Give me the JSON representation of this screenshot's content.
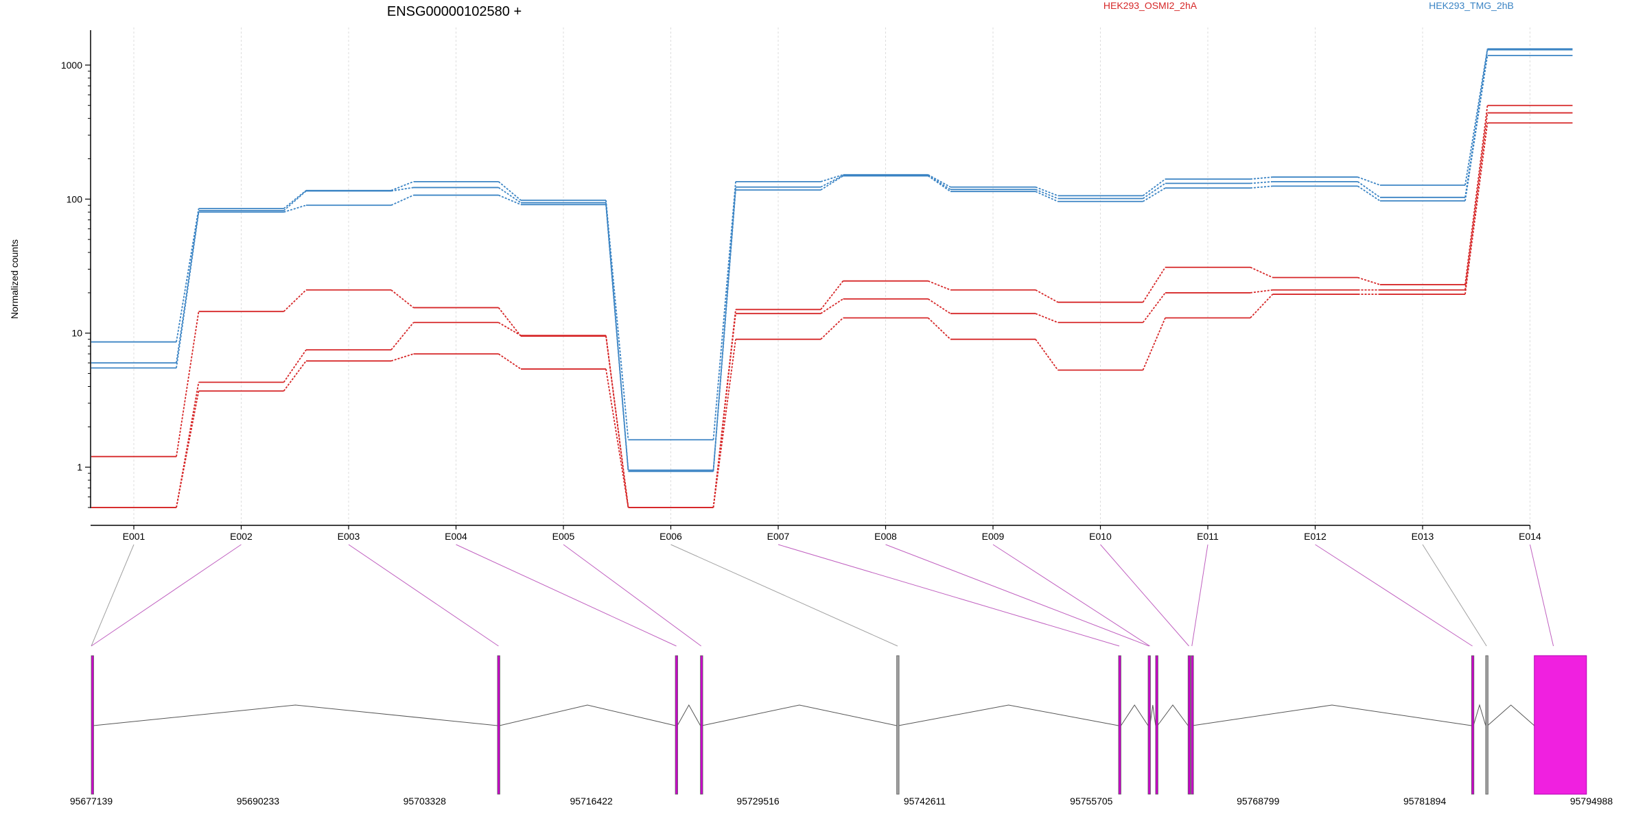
{
  "chart_data": {
    "type": "line",
    "title": "ENSG00000102580 +",
    "ylabel": "Normalized counts",
    "yscale": "log",
    "ylim": [
      0.5,
      1800
    ],
    "yticks": [
      1,
      10,
      100,
      1000
    ],
    "grid": "vertical dashed lines at exon bins",
    "legend": [
      {
        "name": "HEK293_OSMI2_2hA",
        "color": "#d62728"
      },
      {
        "name": "HEK293_TMG_2hB",
        "color": "#3b84c4"
      }
    ],
    "categories": [
      "E001",
      "E002",
      "E003",
      "E004",
      "E005",
      "E006",
      "E007",
      "E008",
      "E009",
      "E010",
      "E011",
      "E012",
      "E013",
      "E014"
    ],
    "series": [
      {
        "condition": "HEK293_TMG_2hB",
        "color": "#3b84c4",
        "values": [
          8.6,
          85,
          116,
          135,
          98,
          1.6,
          135,
          152,
          123,
          106,
          141,
          146,
          127,
          1320
        ]
      },
      {
        "condition": "HEK293_TMG_2hB",
        "color": "#3b84c4",
        "values": [
          6.0,
          82,
          115,
          122,
          94,
          0.95,
          123,
          150,
          118,
          101,
          131,
          135,
          103,
          1300
        ]
      },
      {
        "condition": "HEK293_TMG_2hB",
        "color": "#3b84c4",
        "values": [
          5.5,
          80,
          90,
          107,
          91,
          0.93,
          117,
          149,
          114,
          96,
          121,
          125,
          97,
          1180
        ]
      },
      {
        "condition": "HEK293_OSMI2_2hA",
        "color": "#d62728",
        "values": [
          1.2,
          14.5,
          21,
          15.5,
          9.5,
          0.5,
          15,
          24.5,
          21,
          17,
          31,
          26,
          23,
          500
        ]
      },
      {
        "condition": "HEK293_OSMI2_2hA",
        "color": "#d62728",
        "values": [
          0.5,
          4.3,
          7.5,
          12,
          9.6,
          0.5,
          14,
          18,
          14,
          12,
          20,
          21,
          21,
          440
        ]
      },
      {
        "condition": "HEK293_OSMI2_2hA",
        "color": "#d62728",
        "values": [
          0.5,
          3.7,
          6.2,
          7.0,
          5.4,
          0.5,
          9.0,
          13,
          9.0,
          5.3,
          13,
          19.5,
          19.5,
          370
        ]
      }
    ],
    "gene_model": {
      "coordinate_ticks": [
        "95677139",
        "95690233",
        "95703328",
        "95716422",
        "95729516",
        "95742611",
        "95755705",
        "95768799",
        "95781894",
        "95794988"
      ],
      "range": [
        95677139,
        95794988
      ],
      "exons": [
        {
          "bin": "E001",
          "start": 95677139,
          "end": 95677310,
          "color": "#c800c8"
        },
        {
          "bin": "E002",
          "start": 95709050,
          "end": 95709210,
          "color": "#c800c8"
        },
        {
          "bin": "E003",
          "start": 95723020,
          "end": 95723180,
          "color": "#c800c8"
        },
        {
          "bin": "E004",
          "start": 95724990,
          "end": 95725120,
          "color": "#c800c8"
        },
        {
          "bin": "E005",
          "start": 95740410,
          "end": 95740560,
          "color": "#a0a0a0"
        },
        {
          "bin": "E006",
          "start": 95757840,
          "end": 95758030,
          "color": "#c800c8"
        },
        {
          "bin": "E007",
          "start": 95760160,
          "end": 95760310,
          "color": "#c800c8"
        },
        {
          "bin": "E008",
          "start": 95760750,
          "end": 95760900,
          "color": "#c800c8"
        },
        {
          "bin": "E009",
          "start": 95763300,
          "end": 95763440,
          "color": "#c800c8"
        },
        {
          "bin": "E010",
          "start": 95763540,
          "end": 95763650,
          "color": "#c800c8"
        },
        {
          "bin": "E011",
          "start": 95785570,
          "end": 95785720,
          "color": "#c800c8"
        },
        {
          "bin": "E012",
          "start": 95786680,
          "end": 95786830,
          "color": "#a0a0a0"
        },
        {
          "bin": "E013",
          "start": 95790500,
          "end": 95794600,
          "color": "#f020e0"
        }
      ],
      "bin_links": [
        {
          "bin": "E001",
          "pos": 95677139,
          "color": "#a0a0a0"
        },
        {
          "bin": "E002",
          "pos": 95677139,
          "color": "#c060c0"
        },
        {
          "bin": "E003",
          "pos": 95709130,
          "color": "#c060c0"
        },
        {
          "bin": "E004",
          "pos": 95723100,
          "color": "#c060c0"
        },
        {
          "bin": "E005",
          "pos": 95725050,
          "color": "#c060c0"
        },
        {
          "bin": "E006",
          "pos": 95740480,
          "color": "#a0a0a0"
        },
        {
          "bin": "E007",
          "pos": 95757900,
          "color": "#c060c0"
        },
        {
          "bin": "E008",
          "pos": 95760230,
          "color": "#c060c0"
        },
        {
          "bin": "E009",
          "pos": 95760300,
          "color": "#c060c0"
        },
        {
          "bin": "E010",
          "pos": 95763370,
          "color": "#c060c0"
        },
        {
          "bin": "E011",
          "pos": 95763600,
          "color": "#c060c0"
        },
        {
          "bin": "E012",
          "pos": 95785640,
          "color": "#c060c0"
        },
        {
          "bin": "E013",
          "pos": 95786750,
          "color": "#a0a0a0"
        },
        {
          "bin": "E014",
          "pos": 95792000,
          "color": "#c060c0"
        }
      ]
    }
  }
}
